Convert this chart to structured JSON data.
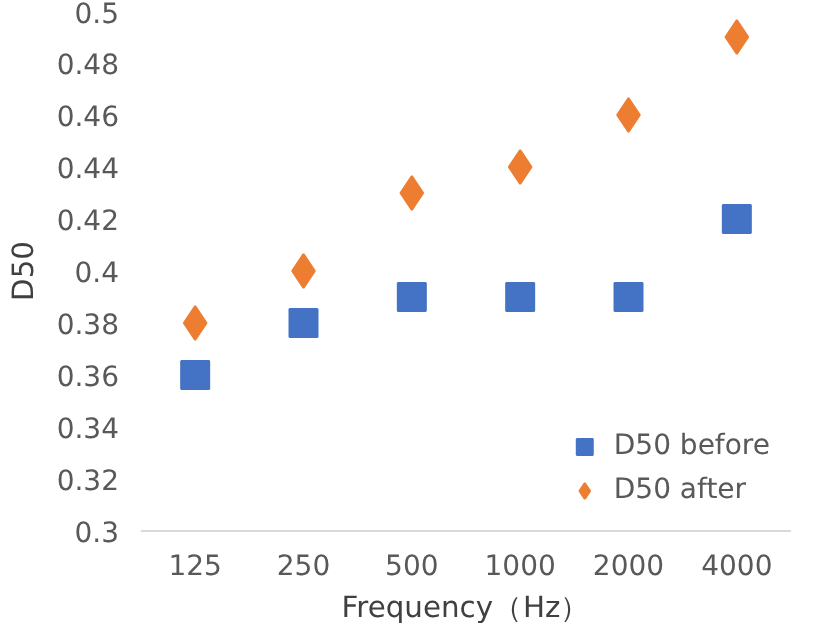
{
  "chart_data": {
    "type": "scatter",
    "xlabel": "Frequency（Hz）",
    "ylabel": "D50",
    "categories": [
      "125",
      "250",
      "500",
      "1000",
      "2000",
      "4000"
    ],
    "series": [
      {
        "name": "D50 before",
        "color": "#4472c4",
        "marker": "square",
        "values": [
          0.36,
          0.38,
          0.39,
          0.39,
          0.39,
          0.42
        ]
      },
      {
        "name": "D50 after",
        "color": "#ed7d31",
        "marker": "diamond",
        "values": [
          0.38,
          0.4,
          0.43,
          0.44,
          0.46,
          0.49
        ]
      }
    ],
    "ylim": [
      0.3,
      0.5
    ],
    "yticks": [
      0.3,
      0.32,
      0.34,
      0.36,
      0.38,
      0.4,
      0.42,
      0.44,
      0.46,
      0.48,
      0.5
    ],
    "grid": false,
    "legend": "bottom right"
  }
}
